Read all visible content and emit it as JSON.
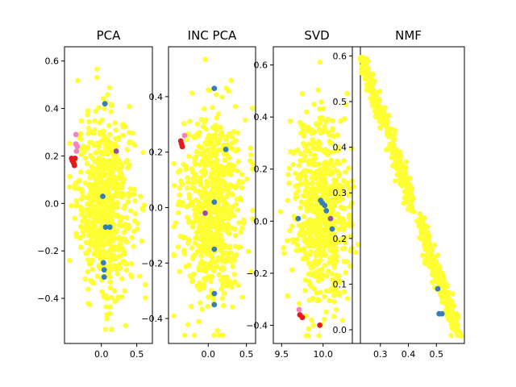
{
  "chart_data": [
    {
      "type": "scatter",
      "title": "PCA",
      "xlim": [
        -0.52,
        0.72
      ],
      "ylim": [
        -0.59,
        0.66
      ],
      "xticks": [
        {
          "v": 0.0,
          "label": "0.0"
        },
        {
          "v": 0.5,
          "label": "0.5"
        }
      ],
      "yticks": [
        {
          "v": -0.4,
          "label": "−0.4"
        },
        {
          "v": -0.2,
          "label": "−0.2"
        },
        {
          "v": 0.0,
          "label": "0.0"
        },
        {
          "v": 0.2,
          "label": "0.2"
        },
        {
          "v": 0.4,
          "label": "0.4"
        },
        {
          "v": 0.6,
          "label": "0.6"
        }
      ],
      "cloud": {
        "x_center": 0.05,
        "x_spread": 0.2,
        "y_center": 0.0,
        "y_spread": 0.19,
        "x_min": -0.45,
        "x_max": 0.62,
        "y_min": -0.53,
        "y_max": 0.6,
        "count": 700
      },
      "series": [
        {
          "color": "#ffff33",
          "points": []
        },
        {
          "color": "#377eb8",
          "points": [
            [
              0.05,
              0.42
            ],
            [
              0.02,
              0.03
            ],
            [
              0.06,
              -0.1
            ],
            [
              0.03,
              -0.25
            ],
            [
              0.04,
              -0.28
            ],
            [
              0.04,
              -0.31
            ],
            [
              0.12,
              -0.1
            ]
          ]
        },
        {
          "color": "#e41a1c",
          "points": [
            [
              -0.42,
              0.19
            ],
            [
              -0.41,
              0.18
            ],
            [
              -0.39,
              0.17
            ],
            [
              -0.38,
              0.16
            ],
            [
              -0.37,
              0.19
            ]
          ]
        },
        {
          "color": "#f781bf",
          "points": [
            [
              -0.36,
              0.29
            ],
            [
              -0.36,
              0.25
            ],
            [
              -0.34,
              0.24
            ],
            [
              -0.35,
              0.22
            ]
          ]
        },
        {
          "color": "#984ea3",
          "points": [
            [
              0.21,
              0.22
            ]
          ]
        }
      ]
    },
    {
      "type": "scatter",
      "title": "INC PCA",
      "xlim": [
        -0.52,
        0.62
      ],
      "ylim": [
        -0.49,
        0.58
      ],
      "xticks": [
        {
          "v": 0.0,
          "label": "0.0"
        },
        {
          "v": 0.5,
          "label": "0.5"
        }
      ],
      "yticks": [
        {
          "v": -0.4,
          "label": "−0.4"
        },
        {
          "v": -0.2,
          "label": "−0.2"
        },
        {
          "v": 0.0,
          "label": "0.0"
        },
        {
          "v": 0.2,
          "label": "0.2"
        },
        {
          "v": 0.4,
          "label": "0.4"
        }
      ],
      "cloud": {
        "x_center": 0.05,
        "x_spread": 0.2,
        "y_center": 0.0,
        "y_spread": 0.17,
        "x_min": -0.45,
        "x_max": 0.58,
        "y_min": -0.46,
        "y_max": 0.55,
        "count": 700
      },
      "series": [
        {
          "color": "#ffff33",
          "points": []
        },
        {
          "color": "#377eb8",
          "points": [
            [
              0.08,
              0.43
            ],
            [
              0.08,
              0.02
            ],
            [
              0.08,
              -0.15
            ],
            [
              0.08,
              -0.31
            ],
            [
              0.08,
              -0.35
            ],
            [
              0.23,
              0.21
            ]
          ]
        },
        {
          "color": "#e41a1c",
          "points": [
            [
              -0.36,
              0.24
            ],
            [
              -0.35,
              0.23
            ],
            [
              -0.34,
              0.22
            ]
          ]
        },
        {
          "color": "#f781bf",
          "points": [
            [
              -0.31,
              0.26
            ]
          ]
        },
        {
          "color": "#984ea3",
          "points": [
            [
              -0.04,
              -0.02
            ]
          ]
        }
      ]
    },
    {
      "type": "scatter",
      "title": "SVD",
      "xlim": [
        9.4,
        10.45
      ],
      "ylim": [
        -0.47,
        0.67
      ],
      "xticks": [
        {
          "v": 9.5,
          "label": "9.5"
        },
        {
          "v": 10.0,
          "label": "10.0"
        }
      ],
      "yticks": [
        {
          "v": -0.4,
          "label": "−0.4"
        },
        {
          "v": -0.2,
          "label": "−0.2"
        },
        {
          "v": 0.0,
          "label": "0.0"
        },
        {
          "v": 0.2,
          "label": "0.2"
        },
        {
          "v": 0.4,
          "label": "0.4"
        },
        {
          "v": 0.6,
          "label": "0.6"
        }
      ],
      "cloud": {
        "x_center": 9.97,
        "x_spread": 0.17,
        "y_center": 0.03,
        "y_spread": 0.18,
        "x_min": 9.45,
        "x_max": 10.42,
        "y_min": -0.44,
        "y_max": 0.62,
        "count": 700
      },
      "series": [
        {
          "color": "#ffff33",
          "points": []
        },
        {
          "color": "#377eb8",
          "points": [
            [
              9.97,
              0.08
            ],
            [
              9.99,
              0.07
            ],
            [
              10.02,
              0.06
            ],
            [
              9.7,
              0.01
            ],
            [
              10.11,
              -0.03
            ],
            [
              10.04,
              0.04
            ]
          ]
        },
        {
          "color": "#e41a1c",
          "points": [
            [
              9.72,
              -0.36
            ],
            [
              9.96,
              -0.4
            ],
            [
              9.75,
              -0.37
            ]
          ]
        },
        {
          "color": "#f781bf",
          "points": [
            [
              9.71,
              -0.34
            ]
          ]
        },
        {
          "color": "#984ea3",
          "points": [
            [
              10.09,
              0.01
            ]
          ]
        }
      ]
    },
    {
      "type": "scatter",
      "title": "NMF",
      "xlim": [
        0.2,
        0.6
      ],
      "ylim": [
        -0.03,
        0.62
      ],
      "xticks": [
        {
          "v": 0.3,
          "label": "0.3"
        },
        {
          "v": 0.4,
          "label": "0.4"
        },
        {
          "v": 0.5,
          "label": "0.5"
        }
      ],
      "yticks": [
        {
          "v": 0.0,
          "label": "0.0"
        },
        {
          "v": 0.1,
          "label": "0.1"
        },
        {
          "v": 0.2,
          "label": "0.2"
        },
        {
          "v": 0.3,
          "label": "0.3"
        },
        {
          "v": 0.4,
          "label": "0.4"
        },
        {
          "v": 0.5,
          "label": "0.5"
        },
        {
          "v": 0.6,
          "label": "0.6"
        }
      ],
      "band": {
        "x0": 0.235,
        "y0": 0.59,
        "x1": 0.57,
        "y1": 0.0,
        "gap_t": [
          0.48,
          0.56
        ],
        "width": 0.015,
        "count": 650
      },
      "series": [
        {
          "color": "#ffff33",
          "points": []
        },
        {
          "color": "#377eb8",
          "points": [
            [
              0.505,
              0.09
            ],
            [
              0.51,
              0.035
            ],
            [
              0.52,
              0.035
            ]
          ]
        }
      ]
    }
  ]
}
